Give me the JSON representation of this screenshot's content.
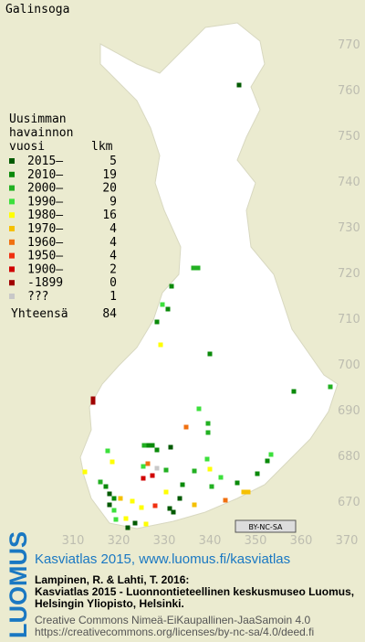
{
  "title": "Galinsoga",
  "legend": {
    "heading": [
      "Uusimman",
      "havainnon"
    ],
    "col_year": "vuosi",
    "col_count": "lkm",
    "rows": [
      {
        "label": "2015–",
        "count": 5,
        "color": "#005a00"
      },
      {
        "label": "2010–",
        "count": 19,
        "color": "#0a8a0a"
      },
      {
        "label": "2000–",
        "count": 20,
        "color": "#22b022"
      },
      {
        "label": "1990–",
        "count": 9,
        "color": "#3ce03c"
      },
      {
        "label": "1980–",
        "count": 16,
        "color": "#ffff00"
      },
      {
        "label": "1970–",
        "count": 4,
        "color": "#f5c000"
      },
      {
        "label": "1960–",
        "count": 4,
        "color": "#f07010"
      },
      {
        "label": "1950–",
        "count": 4,
        "color": "#f03010"
      },
      {
        "label": "1900–",
        "count": 2,
        "color": "#d00000"
      },
      {
        "label": "-1899",
        "count": 0,
        "color": "#a00000"
      },
      {
        "label": "???",
        "count": 1,
        "color": "#c8c8c8"
      }
    ],
    "total": {
      "label": "Yhteensä",
      "count": 84
    }
  },
  "map": {
    "y_labels": [
      770,
      760,
      750,
      740,
      730,
      720,
      710,
      700,
      690,
      680,
      670
    ],
    "x_labels": [
      310,
      320,
      330,
      340,
      350,
      360,
      370
    ],
    "license_badge": "BY-NC-SA"
  },
  "footer": {
    "logo": "LUOMUS",
    "heading": "Kasviatlas 2015, www.luomus.fi/kasviatlas",
    "citation": [
      "Lampinen, R. & Lahti, T. 2016:",
      "Kasviatlas 2015 - Luonnontieteellinen keskusmuseo Luomus,",
      "Helsingin Yliopisto, Helsinki."
    ],
    "license": [
      "Creative Commons Nimeä-EiKaupallinen-JaaSamoin 4.0",
      "https://creativecommons.org/licenses/by-nc-sa/4.0/deed.fi"
    ]
  }
}
